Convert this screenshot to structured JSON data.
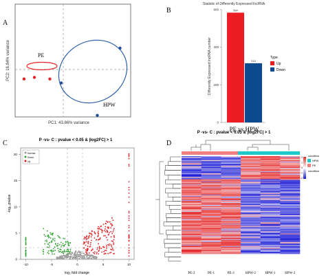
{
  "panels": {
    "a": {
      "letter": "A",
      "xlabel": "PC1: 43.86% variance",
      "ylabel": "PC2: 16.84% variance",
      "group_pe": "PE",
      "group_hpw": "HPW"
    },
    "b": {
      "letter": "B",
      "title": "Statistic of Differently Expressed lncRNA",
      "ylabel": "Differently Expressed lncRNA number",
      "xlabel": "PE vs HPW",
      "legend_title": "Type",
      "legend_up": "Up",
      "legend_down": "Down",
      "yticks": [
        "0",
        "200",
        "400",
        "600"
      ]
    },
    "c": {
      "letter": "C",
      "title": "P -vs- C : pvalue < 0.05 & |log2FC| > 1",
      "ylabel": "-log₁₀pvalue",
      "xlabel": "log₂ fold change",
      "legend": [
        "Normal",
        "Down",
        "Up"
      ],
      "xticks": [
        "-10",
        "-5",
        "0",
        "5",
        "10"
      ],
      "yticks": [
        "0",
        "5",
        "10",
        "15",
        "20"
      ]
    },
    "d": {
      "letter": "D",
      "title": "P -vs- C : pvalue < 0.05 & |log2FC| > 1",
      "legend_condition": "condition",
      "legend_hpw": "HPW",
      "legend_pe": "PE",
      "scale_title": "condition",
      "scale_ticks": [
        "2",
        "1",
        "0",
        "-1",
        "-2"
      ],
      "samples": [
        "PE-2",
        "PE-1",
        "PE-3",
        "HPW-2",
        "HPW-1",
        "HPW-3"
      ]
    }
  },
  "colors": {
    "pe": "#e8242b",
    "hpw": "#1f4e9a",
    "up": "#ee1c25",
    "down": "#0b4a8f",
    "heat_high": "#e62b2b",
    "heat_low": "#1a1ad6",
    "cond_hpw": "#1ec9c9",
    "cond_pe": "#f08080"
  },
  "chart_data": [
    {
      "type": "scatter",
      "title": "",
      "xlabel": "PC1: 43.86% variance",
      "ylabel": "PC2: 16.84% variance",
      "series": [
        {
          "name": "PE",
          "x": [
            -38,
            -28,
            -13
          ],
          "y": [
            -12,
            -10,
            -12
          ]
        },
        {
          "name": "HPW",
          "x": [
            -2,
            33,
            55
          ],
          "y": [
            -17,
            -58,
            27
          ]
        }
      ]
    },
    {
      "type": "bar",
      "title": "Statistic of Differently Expressed lncRNA",
      "categories": [
        "Up",
        "Down"
      ],
      "values": [
        584,
        315
      ],
      "data_labels": [
        "584",
        "315"
      ],
      "xlabel": "PE vs HPW",
      "ylabel": "Differently Expressed lncRNA number",
      "ylim": [
        0,
        600
      ]
    },
    {
      "type": "scatter",
      "title": "P -vs- C : pvalue < 0.05 & |log2FC| > 1",
      "xlabel": "log₂ fold change",
      "ylabel": "-log₁₀pvalue",
      "xlim": [
        -11,
        11
      ],
      "ylim": [
        0,
        21
      ],
      "series": [
        {
          "name": "Normal",
          "x": [
            -3,
            -1.5,
            0,
            1.5,
            3,
            -2,
            2
          ],
          "y": [
            0.5,
            0.8,
            0.3,
            0.9,
            0.5,
            1.2,
            1.1
          ]
        },
        {
          "name": "Down",
          "x": [
            -6,
            -5,
            -4,
            -3.5,
            -10,
            -10,
            -10
          ],
          "y": [
            2,
            3,
            2.5,
            4,
            1,
            2.5,
            3.5
          ]
        },
        {
          "name": "Up",
          "x": [
            3,
            4,
            5,
            6,
            10,
            10,
            10,
            10
          ],
          "y": [
            3,
            4.5,
            6,
            5,
            8,
            12,
            16,
            20
          ]
        }
      ]
    },
    {
      "type": "heatmap",
      "title": "P -vs- C : pvalue < 0.05 & |log2FC| > 1",
      "columns": [
        "PE-2",
        "PE-1",
        "PE-3",
        "HPW-2",
        "HPW-1",
        "HPW-3"
      ]
    }
  ]
}
